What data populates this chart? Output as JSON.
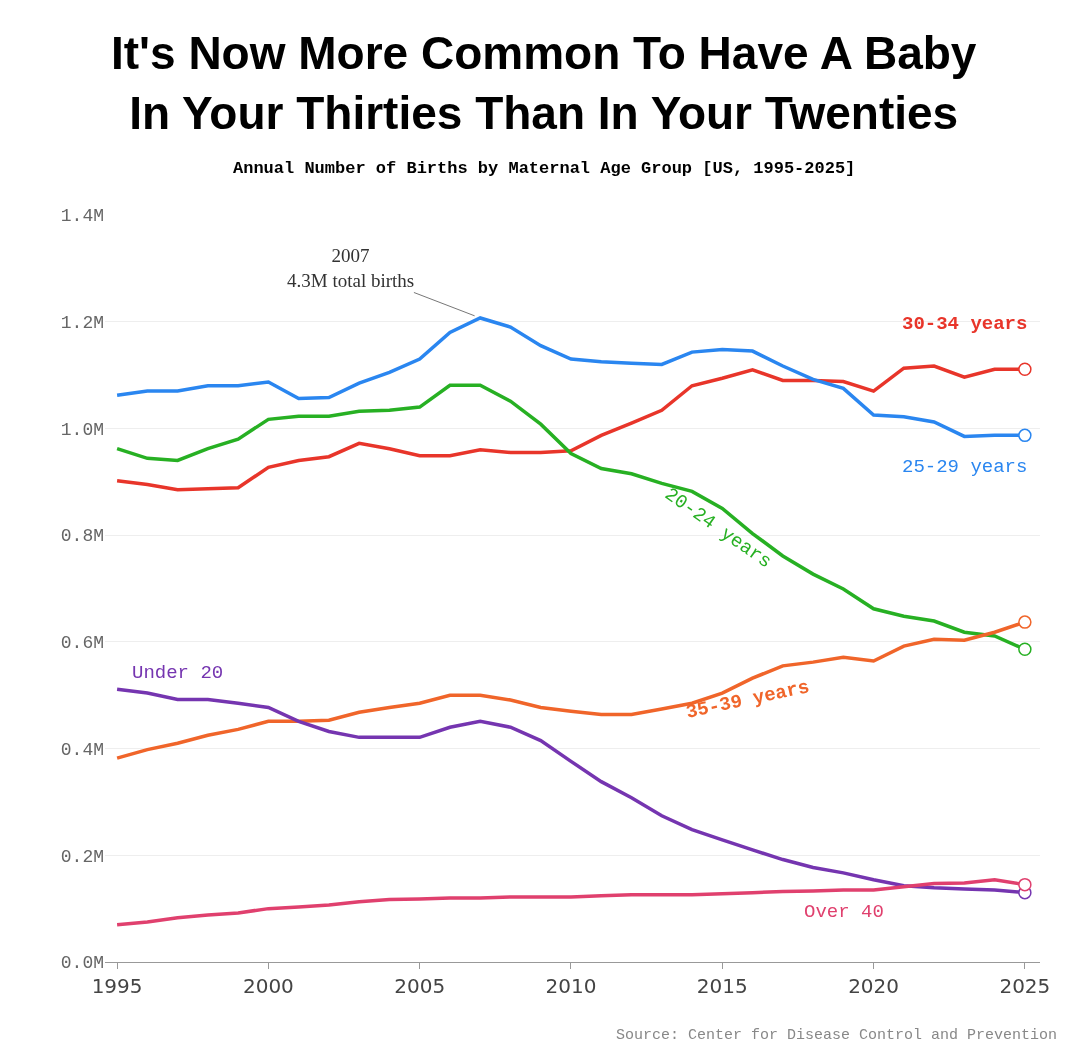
{
  "chart_data": {
    "type": "line",
    "title": "It's Now More Common To Have A Baby\nIn Your Thirties Than In Your Twenties",
    "subtitle": "Annual Number of Births by Maternal Age Group [US, 1995-2025]",
    "x": [
      1995,
      1996,
      1997,
      1998,
      1999,
      2000,
      2001,
      2002,
      2003,
      2004,
      2005,
      2006,
      2007,
      2008,
      2009,
      2010,
      2011,
      2012,
      2013,
      2014,
      2015,
      2016,
      2017,
      2018,
      2019,
      2020,
      2021,
      2022,
      2023,
      2024,
      2025
    ],
    "series": [
      {
        "name": "30-34 years",
        "color": "#e8352a",
        "values": [
          0.902,
          0.895,
          0.885,
          0.887,
          0.889,
          0.927,
          0.94,
          0.947,
          0.972,
          0.962,
          0.949,
          0.949,
          0.96,
          0.955,
          0.955,
          0.958,
          0.987,
          1.01,
          1.034,
          1.08,
          1.094,
          1.11,
          1.09,
          1.09,
          1.088,
          1.07,
          1.113,
          1.117,
          1.096,
          1.111,
          1.111
        ]
      },
      {
        "name": "25-29 years",
        "color": "#2a86f0",
        "values": [
          1.062,
          1.07,
          1.07,
          1.08,
          1.08,
          1.087,
          1.056,
          1.058,
          1.085,
          1.105,
          1.13,
          1.18,
          1.207,
          1.19,
          1.155,
          1.13,
          1.125,
          1.122,
          1.12,
          1.143,
          1.148,
          1.145,
          1.117,
          1.092,
          1.075,
          1.025,
          1.022,
          1.012,
          0.985,
          0.987,
          0.987
        ]
      },
      {
        "name": "20-24 years",
        "color": "#27b023",
        "values": [
          0.962,
          0.944,
          0.94,
          0.962,
          0.98,
          1.017,
          1.023,
          1.023,
          1.032,
          1.034,
          1.04,
          1.081,
          1.081,
          1.051,
          1.008,
          0.953,
          0.925,
          0.915,
          0.897,
          0.882,
          0.85,
          0.803,
          0.761,
          0.727,
          0.699,
          0.662,
          0.648,
          0.639,
          0.618,
          0.611,
          0.586
        ]
      },
      {
        "name": "35-39 years",
        "color": "#f0652a",
        "values": [
          0.382,
          0.398,
          0.41,
          0.425,
          0.436,
          0.451,
          0.451,
          0.453,
          0.468,
          0.477,
          0.485,
          0.5,
          0.5,
          0.491,
          0.477,
          0.47,
          0.464,
          0.464,
          0.474,
          0.485,
          0.504,
          0.532,
          0.555,
          0.562,
          0.571,
          0.564,
          0.592,
          0.605,
          0.603,
          0.618,
          0.637
        ]
      },
      {
        "name": "Under 20",
        "color": "#7535b0",
        "values": [
          0.511,
          0.504,
          0.492,
          0.492,
          0.485,
          0.477,
          0.451,
          0.432,
          0.421,
          0.421,
          0.421,
          0.44,
          0.451,
          0.44,
          0.415,
          0.376,
          0.338,
          0.308,
          0.274,
          0.248,
          0.229,
          0.21,
          0.192,
          0.177,
          0.167,
          0.154,
          0.143,
          0.139,
          0.137,
          0.135,
          0.13
        ]
      },
      {
        "name": "Over 40",
        "color": "#e0406e",
        "values": [
          0.07,
          0.075,
          0.083,
          0.088,
          0.092,
          0.1,
          0.103,
          0.107,
          0.113,
          0.117,
          0.118,
          0.12,
          0.12,
          0.122,
          0.122,
          0.122,
          0.124,
          0.126,
          0.126,
          0.126,
          0.128,
          0.13,
          0.132,
          0.133,
          0.135,
          0.135,
          0.141,
          0.147,
          0.148,
          0.154,
          0.145
        ]
      }
    ],
    "xlim": [
      1994.6,
      2025.5
    ],
    "xticks": [
      1995,
      2000,
      2005,
      2010,
      2015,
      2020,
      2025
    ],
    "ylim": [
      0,
      1.4
    ],
    "yticks": [
      {
        "value": 0,
        "label": "0.0M"
      },
      {
        "value": 0.2,
        "label": "0.2M"
      },
      {
        "value": 0.4,
        "label": "0.4M"
      },
      {
        "value": 0.6,
        "label": "0.6M"
      },
      {
        "value": 0.8,
        "label": "0.8M"
      },
      {
        "value": 1.0,
        "label": "1.0M"
      },
      {
        "value": 1.2,
        "label": "1.2M"
      },
      {
        "value": 1.4,
        "label": "1.4M"
      }
    ],
    "grid": "y",
    "legend": false,
    "marker": "none",
    "annotations": [
      {
        "text": "2007\n4.3M total births",
        "x": 2007,
        "y": 1.207
      },
      "Source: Center for Disease Control and Prevention"
    ]
  }
}
